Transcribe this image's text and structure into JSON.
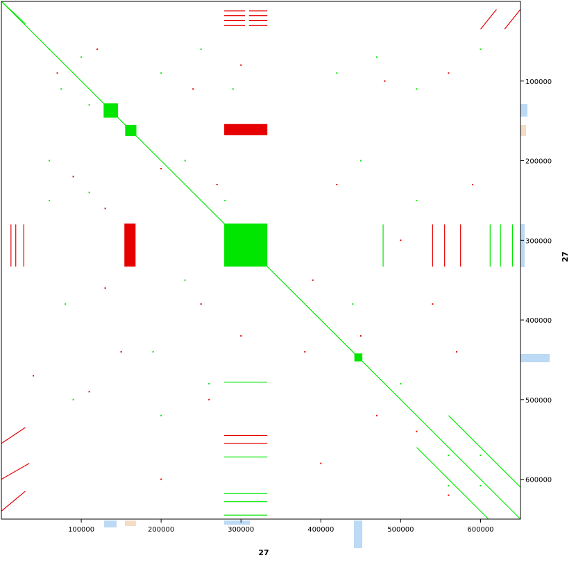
{
  "chart_data": {
    "type": "dotplot",
    "xlabel": "27",
    "ylabel": "27",
    "xlim": [
      0,
      650000
    ],
    "ylim": [
      0,
      650000
    ],
    "xticks": [
      100000,
      200000,
      300000,
      400000,
      500000,
      600000
    ],
    "yticks": [
      100000,
      200000,
      300000,
      400000,
      500000,
      600000
    ],
    "series": [
      {
        "color": "#00e600",
        "blocks": [
          [
            128000,
            128000,
            146000,
            146000
          ],
          [
            155000,
            155000,
            169000,
            169000
          ],
          [
            279000,
            279000,
            333000,
            333000
          ],
          [
            442000,
            442000,
            452000,
            452000
          ]
        ],
        "segments": [
          [
            0,
            0,
            650000,
            650000
          ],
          [
            520000,
            560000,
            610000,
            650000
          ],
          [
            560000,
            520000,
            650000,
            610000
          ],
          [
            478000,
            280000,
            478000,
            333000
          ],
          [
            612000,
            280000,
            612000,
            333000
          ],
          [
            625000,
            280000,
            625000,
            333000
          ],
          [
            640000,
            280000,
            640000,
            333000
          ],
          [
            279000,
            478000,
            333000,
            478000
          ],
          [
            279000,
            572000,
            333000,
            572000
          ],
          [
            279000,
            618000,
            333000,
            618000
          ],
          [
            279000,
            628000,
            333000,
            628000
          ],
          [
            279000,
            645000,
            333000,
            645000
          ],
          [
            0,
            0,
            30000,
            28000
          ]
        ],
        "dots": [
          [
            60000,
            60000
          ],
          [
            75000,
            110000
          ],
          [
            100000,
            70000
          ],
          [
            200000,
            90000
          ],
          [
            250000,
            60000
          ],
          [
            290000,
            110000
          ],
          [
            60000,
            200000
          ],
          [
            110000,
            240000
          ],
          [
            230000,
            200000
          ],
          [
            280000,
            250000
          ],
          [
            60000,
            250000
          ],
          [
            420000,
            90000
          ],
          [
            470000,
            70000
          ],
          [
            520000,
            110000
          ],
          [
            600000,
            60000
          ],
          [
            450000,
            200000
          ],
          [
            520000,
            250000
          ],
          [
            80000,
            380000
          ],
          [
            230000,
            350000
          ],
          [
            260000,
            480000
          ],
          [
            90000,
            500000
          ],
          [
            200000,
            520000
          ],
          [
            440000,
            380000
          ],
          [
            500000,
            480000
          ],
          [
            560000,
            570000
          ],
          [
            600000,
            570000
          ],
          [
            560000,
            608000
          ],
          [
            600000,
            608000
          ],
          [
            190000,
            440000
          ],
          [
            110000,
            130000
          ]
        ]
      },
      {
        "color": "#e60000",
        "blocks": [
          [
            279000,
            154000,
            333000,
            168000
          ],
          [
            154000,
            279000,
            168000,
            333000
          ]
        ],
        "segments": [
          [
            279000,
            12000,
            305000,
            12000
          ],
          [
            310000,
            12000,
            333000,
            12000
          ],
          [
            279000,
            18000,
            305000,
            18000
          ],
          [
            310000,
            18000,
            333000,
            18000
          ],
          [
            279000,
            24000,
            305000,
            24000
          ],
          [
            310000,
            24000,
            333000,
            24000
          ],
          [
            279000,
            30000,
            305000,
            30000
          ],
          [
            310000,
            30000,
            333000,
            30000
          ],
          [
            12000,
            280000,
            12000,
            333000
          ],
          [
            18000,
            280000,
            18000,
            333000
          ],
          [
            28000,
            280000,
            28000,
            333000
          ],
          [
            540000,
            280000,
            540000,
            333000
          ],
          [
            555000,
            280000,
            555000,
            333000
          ],
          [
            575000,
            280000,
            575000,
            333000
          ],
          [
            279000,
            545000,
            333000,
            545000
          ],
          [
            279000,
            555000,
            333000,
            555000
          ],
          [
            630000,
            35000,
            650000,
            10000
          ],
          [
            600000,
            35000,
            620000,
            10000
          ],
          [
            0,
            640000,
            30000,
            615000
          ],
          [
            0,
            600000,
            35000,
            580000
          ],
          [
            0,
            555000,
            30000,
            535000
          ]
        ],
        "dots": [
          [
            70000,
            90000
          ],
          [
            120000,
            60000
          ],
          [
            240000,
            110000
          ],
          [
            300000,
            80000
          ],
          [
            90000,
            220000
          ],
          [
            200000,
            210000
          ],
          [
            270000,
            230000
          ],
          [
            130000,
            260000
          ],
          [
            420000,
            230000
          ],
          [
            480000,
            100000
          ],
          [
            560000,
            90000
          ],
          [
            590000,
            230000
          ],
          [
            130000,
            360000
          ],
          [
            250000,
            380000
          ],
          [
            390000,
            350000
          ],
          [
            450000,
            420000
          ],
          [
            540000,
            380000
          ],
          [
            570000,
            440000
          ],
          [
            110000,
            490000
          ],
          [
            260000,
            500000
          ],
          [
            470000,
            520000
          ],
          [
            520000,
            540000
          ],
          [
            200000,
            600000
          ],
          [
            400000,
            580000
          ],
          [
            560000,
            620000
          ],
          [
            380000,
            440000
          ],
          [
            150000,
            440000
          ],
          [
            300000,
            420000
          ],
          [
            40000,
            470000
          ],
          [
            500000,
            300000
          ]
        ]
      }
    ]
  }
}
